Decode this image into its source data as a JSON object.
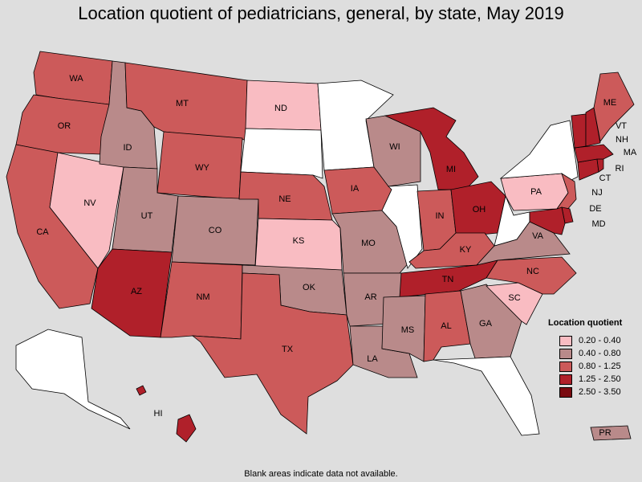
{
  "title": "Location quotient of pediatricians, general, by state, May 2019",
  "footnote": "Blank areas indicate data not available.",
  "legend": {
    "title": "Location quotient",
    "bins": [
      {
        "label": "0.20 - 0.40",
        "color": "#f9bcc2"
      },
      {
        "label": "0.40 - 0.80",
        "color": "#b98a8a"
      },
      {
        "label": "0.80 - 1.25",
        "color": "#cc5a5a"
      },
      {
        "label": "1.25 - 2.50",
        "color": "#b0202a"
      },
      {
        "label": "2.50 - 3.50",
        "color": "#7a0a10"
      }
    ]
  },
  "nodata_color": "#ffffff",
  "states": {
    "WA": 2,
    "OR": 2,
    "CA": 2,
    "NV": 0,
    "ID": 1,
    "MT": 2,
    "WY": 2,
    "UT": 1,
    "AZ": 3,
    "CO": 1,
    "NM": 2,
    "ND": 0,
    "SD": null,
    "NE": 2,
    "KS": 0,
    "OK": 1,
    "TX": 2,
    "MN": null,
    "IA": 2,
    "MO": 1,
    "AR": 1,
    "LA": 1,
    "WI": 1,
    "IL": null,
    "MI": 3,
    "IN": 2,
    "OH": 3,
    "KY": 2,
    "TN": 3,
    "MS": 1,
    "AL": 2,
    "GA": 1,
    "FL": null,
    "SC": 0,
    "NC": 2,
    "VA": 1,
    "WV": null,
    "PA": 0,
    "NY": null,
    "NJ": 2,
    "DE": 3,
    "MD": 3,
    "CT": 3,
    "RI": 3,
    "MA": 3,
    "VT": 3,
    "NH": 3,
    "ME": 2,
    "AK": null,
    "HI": 3,
    "PR": 1
  },
  "labels": [
    "WA",
    "OR",
    "CA",
    "NV",
    "ID",
    "MT",
    "WY",
    "UT",
    "AZ",
    "CO",
    "NM",
    "ND",
    "NE",
    "KS",
    "OK",
    "TX",
    "IA",
    "MO",
    "AR",
    "LA",
    "WI",
    "MI",
    "IN",
    "OH",
    "KY",
    "TN",
    "MS",
    "AL",
    "GA",
    "SC",
    "NC",
    "VA",
    "PA",
    "NJ",
    "DE",
    "MD",
    "CT",
    "RI",
    "MA",
    "VT",
    "NH",
    "ME",
    "HI",
    "PR"
  ]
}
